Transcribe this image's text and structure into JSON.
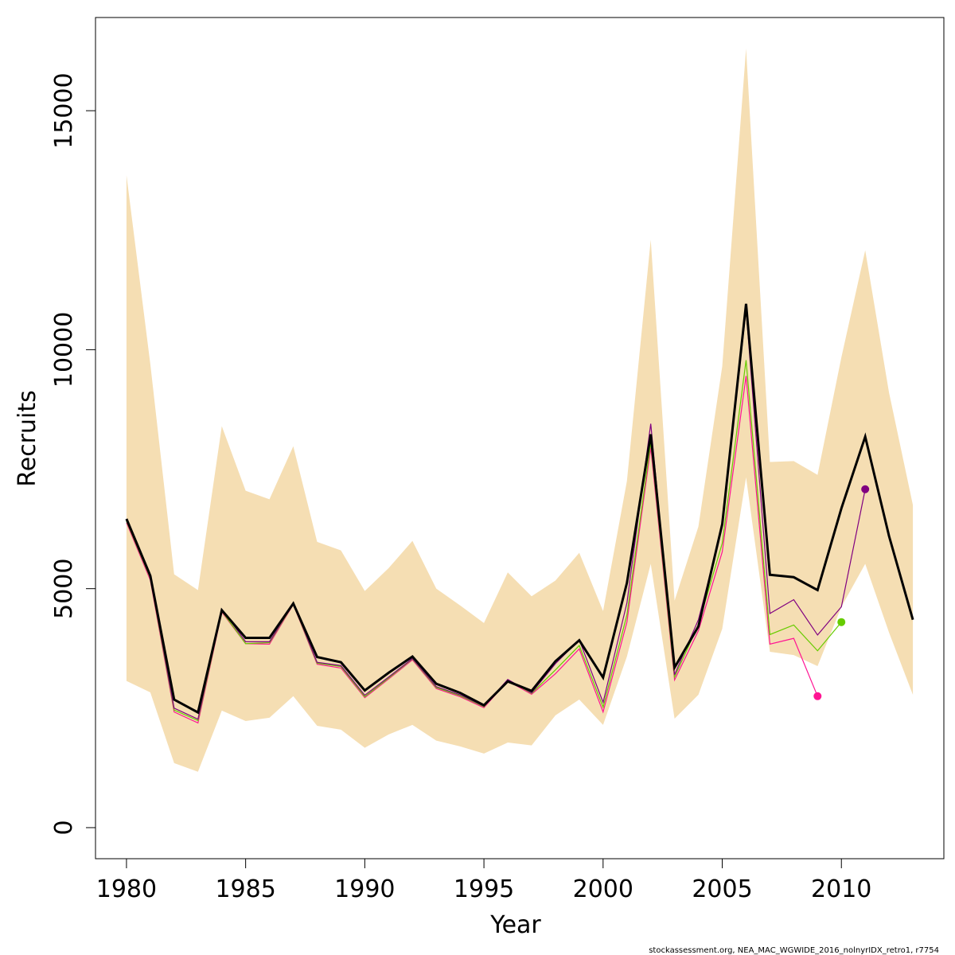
{
  "chart_data": {
    "type": "line",
    "xlabel": "Year",
    "ylabel": "Recruits",
    "xlim": [
      1978.7,
      2014.3
    ],
    "ylim": [
      -650,
      16950
    ],
    "x_ticks": [
      1980,
      1985,
      1990,
      1995,
      2000,
      2005,
      2010
    ],
    "y_ticks": [
      0,
      5000,
      10000,
      15000
    ],
    "grid": false,
    "confidence_band": {
      "color": "#f5deb3",
      "years": [
        1980,
        1981,
        1982,
        1983,
        1984,
        1985,
        1986,
        1987,
        1988,
        1989,
        1990,
        1991,
        1992,
        1993,
        1994,
        1995,
        1996,
        1997,
        1998,
        1999,
        2000,
        2001,
        2002,
        2003,
        2004,
        2005,
        2006,
        2007,
        2008,
        2009,
        2010,
        2011,
        2012,
        2013
      ],
      "upper": [
        13650,
        9700,
        5300,
        4970,
        8400,
        7050,
        6870,
        7980,
        5980,
        5800,
        4950,
        5430,
        6000,
        5000,
        4650,
        4280,
        5340,
        4840,
        5170,
        5750,
        4530,
        7250,
        12300,
        4750,
        6300,
        9650,
        16300,
        7650,
        7670,
        7380,
        9840,
        12080,
        9100,
        6750
      ],
      "lower": [
        3070,
        2830,
        1350,
        1170,
        2450,
        2230,
        2300,
        2750,
        2130,
        2050,
        1670,
        1950,
        2150,
        1820,
        1700,
        1550,
        1780,
        1720,
        2350,
        2680,
        2150,
        3580,
        5520,
        2280,
        2780,
        4160,
        7330,
        3680,
        3610,
        3380,
        4620,
        5520,
        4080,
        2780
      ]
    },
    "series": [
      {
        "color": "#000000",
        "x": [
          1980,
          1981,
          1982,
          1983,
          1984,
          1985,
          1986,
          1987,
          1988,
          1989,
          1990,
          1991,
          1992,
          1993,
          1994,
          1995,
          1996,
          1997,
          1998,
          1999,
          2000,
          2001,
          2002,
          2003,
          2004,
          2005,
          2006,
          2007,
          2008,
          2009,
          2010,
          2011,
          2012,
          2013
        ],
        "y": [
          6460,
          5270,
          2680,
          2410,
          4550,
          3970,
          3970,
          4690,
          3570,
          3460,
          2870,
          3240,
          3580,
          3010,
          2820,
          2560,
          3060,
          2860,
          3480,
          3920,
          3140,
          5120,
          8230,
          3350,
          4210,
          6350,
          10960,
          5290,
          5240,
          4970,
          6680,
          8180,
          6100,
          4350
        ]
      },
      {
        "color": "#800080",
        "x": [
          1980,
          1981,
          1982,
          1983,
          1984,
          1985,
          1986,
          1987,
          1988,
          1989,
          1990,
          1991,
          1992,
          1993,
          1994,
          1995,
          1996,
          1997,
          1998,
          1999,
          2000,
          2001,
          2002,
          2003,
          2004,
          2005,
          2006,
          2007,
          2008,
          2009,
          2010,
          2011
        ],
        "y": [
          6430,
          5240,
          2500,
          2270,
          4570,
          3890,
          3890,
          4690,
          3460,
          3390,
          2770,
          3150,
          3540,
          2950,
          2780,
          2540,
          3100,
          2820,
          3430,
          3930,
          2620,
          4700,
          8450,
          3200,
          4350,
          6300,
          10840,
          4480,
          4770,
          4030,
          4620,
          7080
        ]
      },
      {
        "color": "#66cc00",
        "x": [
          1980,
          1981,
          1982,
          1983,
          1984,
          1985,
          1986,
          1987,
          1988,
          1989,
          1990,
          1991,
          1992,
          1993,
          1994,
          1995,
          1996,
          1997,
          1998,
          1999,
          2000,
          2001,
          2002,
          2003,
          2004,
          2005,
          2006,
          2007,
          2008,
          2009,
          2010
        ],
        "y": [
          6410,
          5220,
          2460,
          2240,
          4530,
          3850,
          3870,
          4680,
          3440,
          3370,
          2740,
          3130,
          3530,
          2930,
          2760,
          2530,
          3090,
          2810,
          3300,
          3810,
          2520,
          4450,
          8060,
          3150,
          4250,
          5950,
          9780,
          4040,
          4240,
          3700,
          4300
        ]
      },
      {
        "color": "#ff1493",
        "x": [
          1980,
          1981,
          1982,
          1983,
          1984,
          1985,
          1986,
          1987,
          1988,
          1989,
          1990,
          1991,
          1992,
          1993,
          1994,
          1995,
          1996,
          1997,
          1998,
          1999,
          2000,
          2001,
          2002,
          2003,
          2004,
          2005,
          2006,
          2007,
          2008,
          2009
        ],
        "y": [
          6380,
          5180,
          2420,
          2190,
          4510,
          3850,
          3840,
          4670,
          3420,
          3340,
          2720,
          3110,
          3510,
          2910,
          2740,
          2510,
          3070,
          2790,
          3220,
          3740,
          2420,
          4300,
          7950,
          3090,
          4120,
          5770,
          9450,
          3840,
          3960,
          2750
        ]
      }
    ],
    "endpoint_markers": [
      {
        "x": 2011,
        "y": 7080,
        "color": "#800080"
      },
      {
        "x": 2010,
        "y": 4300,
        "color": "#66cc00"
      },
      {
        "x": 2009,
        "y": 2750,
        "color": "#ff1493"
      }
    ]
  },
  "footer": {
    "text": "stockassessment.org, NEA_MAC_WGWIDE_2016_nolnyrIDX_retro1, r7754"
  }
}
